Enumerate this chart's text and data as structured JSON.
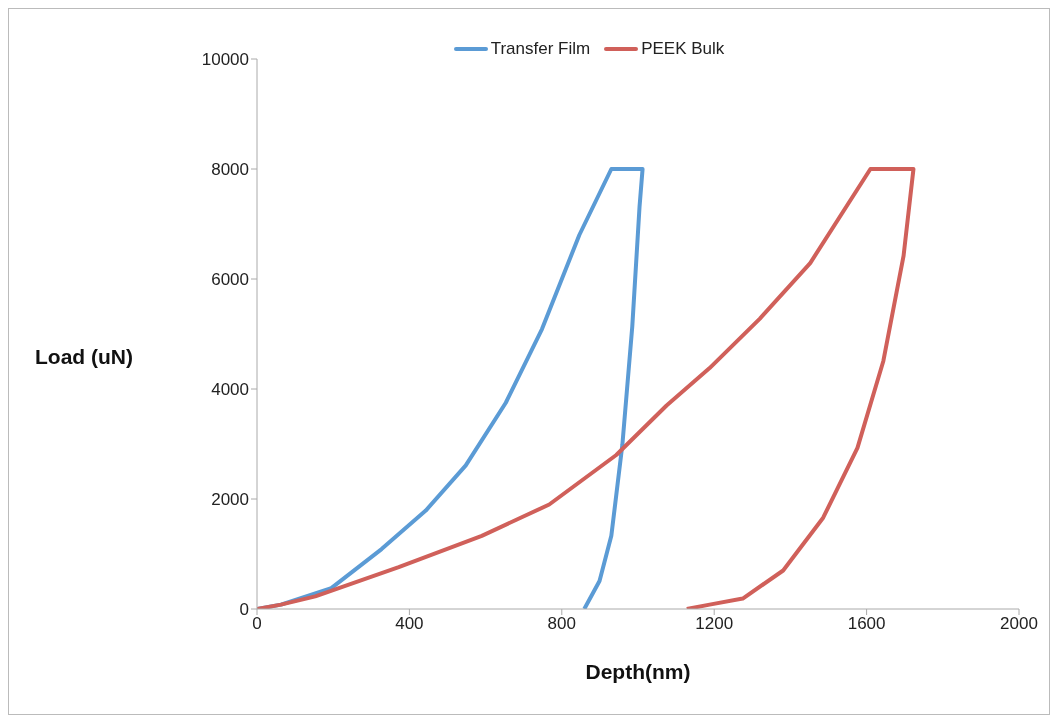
{
  "chart_data": {
    "type": "line",
    "xlabel": "Depth(nm)",
    "ylabel": "Load (uN)",
    "xlim": [
      0,
      2000
    ],
    "xticks": [
      0,
      400,
      800,
      1200,
      1600,
      2000
    ],
    "ylim": [
      0,
      10000
    ],
    "yticks": [
      0,
      2000,
      4000,
      6000,
      8000,
      10000
    ],
    "grid": false,
    "legend": "top",
    "marker": "none",
    "line_style": "solid",
    "series": [
      {
        "name": "Transfer Film",
        "color": "#5b9bd5",
        "x": [
          0,
          63,
          195,
          327,
          443,
          548,
          653,
          748,
          846,
          930,
          1012,
          1004,
          985,
          959,
          930,
          899,
          859
        ],
        "values": [
          0,
          80,
          380,
          1090,
          1790,
          2610,
          3750,
          5090,
          6800,
          8000,
          8000,
          7310,
          5140,
          2990,
          1330,
          510,
          0
        ]
      },
      {
        "name": "PEEK Bulk",
        "color": "#d0605a",
        "x": [
          0,
          63,
          153,
          372,
          590,
          767,
          943,
          1075,
          1188,
          1320,
          1452,
          1610,
          1723,
          1697,
          1644,
          1576,
          1486,
          1381,
          1275,
          1188,
          1128
        ],
        "values": [
          0,
          80,
          230,
          760,
          1330,
          1900,
          2800,
          3700,
          4380,
          5280,
          6290,
          8000,
          8000,
          6420,
          4510,
          2930,
          1660,
          700,
          190,
          80,
          0
        ]
      }
    ]
  }
}
